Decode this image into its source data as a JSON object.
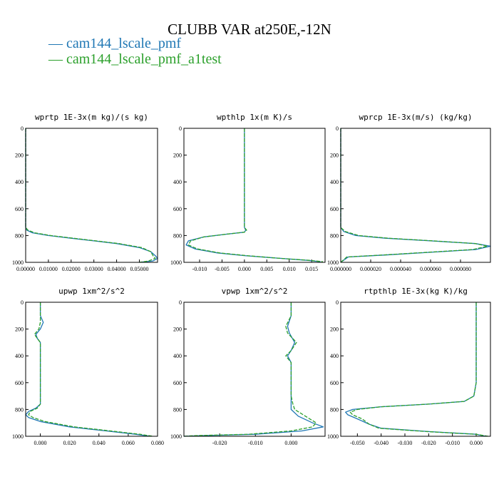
{
  "figure": {
    "title": "CLUBB VAR at250E,-12N",
    "legend": [
      {
        "label": "— cam144_lscale_pmf",
        "color": "#1f77b4"
      },
      {
        "label": "— cam144_lscale_pmf_a1test",
        "color": "#2ca02c"
      }
    ]
  },
  "chart_data": [
    {
      "type": "line",
      "title": "wprtp  1E-3x(m kg)/(s kg)",
      "xlim": [
        0.0,
        0.058
      ],
      "ylim": [
        1000,
        0
      ],
      "xticks": [
        0.0,
        0.01,
        0.02,
        0.03,
        0.04,
        0.05
      ],
      "xtick_labels": [
        "0.00000",
        "0.01000",
        "0.02000",
        "0.03000",
        "0.04000",
        "0.05000"
      ],
      "yticks": [
        0,
        200,
        400,
        600,
        800,
        1000
      ],
      "series": [
        {
          "name": "cam144_lscale_pmf",
          "color": "#1f77b4",
          "x": [
            0.0,
            0.0,
            0.0,
            0.0,
            0.0,
            0.0,
            0.0005,
            0.003,
            0.01,
            0.02,
            0.03,
            0.04,
            0.05,
            0.055,
            0.057,
            0.058,
            0.056,
            0.05
          ],
          "y": [
            0,
            200,
            400,
            600,
            700,
            740,
            760,
            780,
            800,
            820,
            840,
            860,
            890,
            920,
            950,
            970,
            990,
            1000
          ]
        },
        {
          "name": "cam144_lscale_pmf_a1test",
          "color": "#2ca02c",
          "x": [
            0.0,
            0.0,
            0.0,
            0.0,
            0.0,
            0.0,
            0.001,
            0.004,
            0.011,
            0.021,
            0.031,
            0.041,
            0.051,
            0.055,
            0.056,
            0.057,
            0.054,
            0.05
          ],
          "y": [
            0,
            200,
            400,
            600,
            700,
            740,
            760,
            780,
            800,
            820,
            840,
            860,
            890,
            920,
            950,
            970,
            990,
            1000
          ]
        }
      ]
    },
    {
      "type": "line",
      "title": "wpthlp  1x(m K)/s",
      "xlim": [
        -0.0135,
        0.018
      ],
      "ylim": [
        1000,
        0
      ],
      "xticks": [
        -0.01,
        -0.005,
        0.0,
        0.005,
        0.01,
        0.015
      ],
      "xtick_labels": [
        "-0.010",
        "-0.005",
        "0.000",
        "0.005",
        "0.010",
        "0.015"
      ],
      "yticks": [
        0,
        200,
        400,
        600,
        800,
        1000
      ],
      "series": [
        {
          "name": "cam144_lscale_pmf",
          "color": "#1f77b4",
          "x": [
            0.0,
            0.0,
            0.0,
            0.0,
            0.0,
            0.0,
            0.0003,
            0.0,
            -0.004,
            -0.009,
            -0.0125,
            -0.013,
            -0.011,
            -0.006,
            0.0,
            0.008,
            0.014,
            0.017
          ],
          "y": [
            0,
            200,
            400,
            600,
            700,
            740,
            760,
            775,
            790,
            810,
            840,
            870,
            900,
            930,
            950,
            970,
            985,
            995
          ]
        },
        {
          "name": "cam144_lscale_pmf_a1test",
          "color": "#2ca02c",
          "x": [
            0.0,
            0.0,
            0.0,
            0.0,
            0.0,
            0.0,
            0.0005,
            0.0,
            -0.004,
            -0.009,
            -0.012,
            -0.0125,
            -0.0105,
            -0.0055,
            0.0005,
            0.008,
            0.0145,
            0.0175
          ],
          "y": [
            0,
            200,
            400,
            600,
            700,
            740,
            760,
            775,
            790,
            810,
            840,
            870,
            900,
            930,
            950,
            970,
            985,
            995
          ]
        }
      ]
    },
    {
      "type": "line",
      "title": "wprcp  1E-3x(m/s) (kg/kg)",
      "xlim": [
        0.0,
        0.0001
      ],
      "ylim": [
        1000,
        0
      ],
      "xticks": [
        0.0,
        2e-05,
        4e-05,
        6e-05,
        8e-05
      ],
      "xtick_labels": [
        "0.000000",
        "0.000020",
        "0.000040",
        "0.000060",
        "0.000080"
      ],
      "yticks": [
        0,
        200,
        400,
        600,
        800,
        1000
      ],
      "series": [
        {
          "name": "cam144_lscale_pmf",
          "color": "#1f77b4",
          "x": [
            0.0,
            0.0,
            0.0,
            0.0,
            0.0,
            0.0,
            2e-06,
            1e-05,
            3e-05,
            6e-05,
            9e-05,
            0.0001,
            9e-05,
            6e-05,
            3e-05,
            5e-06,
            0.0
          ],
          "y": [
            0,
            200,
            400,
            600,
            700,
            740,
            770,
            800,
            820,
            840,
            860,
            880,
            905,
            925,
            945,
            960,
            1000
          ]
        },
        {
          "name": "cam144_lscale_pmf_a1test",
          "color": "#2ca02c",
          "x": [
            0.0,
            0.0,
            0.0,
            0.0,
            0.0,
            0.0,
            3e-06,
            1.2e-05,
            3.2e-05,
            6.2e-05,
            9e-05,
            9.8e-05,
            8.8e-05,
            5.8e-05,
            2.8e-05,
            4e-06,
            0.0
          ],
          "y": [
            0,
            200,
            400,
            600,
            700,
            740,
            770,
            800,
            820,
            840,
            860,
            880,
            905,
            925,
            945,
            960,
            1000
          ]
        }
      ]
    },
    {
      "type": "line",
      "title": "upwp  1xm^2/s^2",
      "xlim": [
        -0.01,
        0.08
      ],
      "ylim": [
        1000,
        0
      ],
      "xticks": [
        0.0,
        0.02,
        0.04,
        0.06,
        0.08
      ],
      "xtick_labels": [
        "0.000",
        "0.020",
        "0.040",
        "0.060",
        "0.080"
      ],
      "yticks": [
        0,
        200,
        400,
        600,
        800,
        1000
      ],
      "series": [
        {
          "name": "cam144_lscale_pmf",
          "color": "#1f77b4",
          "x": [
            0.0,
            0.0,
            0.002,
            0.0,
            -0.003,
            -0.002,
            0.0,
            0.0,
            0.0,
            0.0,
            0.0,
            -0.003,
            -0.008,
            -0.01,
            -0.008,
            0.0,
            0.02,
            0.045,
            0.065,
            0.075
          ],
          "y": [
            0,
            100,
            150,
            200,
            240,
            270,
            300,
            400,
            600,
            700,
            760,
            790,
            815,
            840,
            860,
            890,
            930,
            960,
            985,
            1000
          ]
        },
        {
          "name": "cam144_lscale_pmf_a1test",
          "color": "#2ca02c",
          "x": [
            0.0,
            0.0,
            0.0,
            -0.001,
            -0.004,
            -0.002,
            0.0,
            0.0,
            0.0,
            0.0,
            0.0,
            -0.002,
            -0.007,
            -0.008,
            -0.005,
            0.003,
            0.023,
            0.048,
            0.068,
            0.077
          ],
          "y": [
            0,
            100,
            150,
            200,
            240,
            270,
            300,
            400,
            600,
            700,
            760,
            790,
            815,
            840,
            860,
            890,
            930,
            960,
            985,
            1000
          ]
        }
      ]
    },
    {
      "type": "line",
      "title": "vpwp  1xm^2/s^2",
      "xlim": [
        -0.03,
        0.0095
      ],
      "ylim": [
        1000,
        0
      ],
      "xticks": [
        -0.02,
        -0.01,
        0.0
      ],
      "xtick_labels": [
        "-0.020",
        "-0.010",
        "0.000"
      ],
      "yticks": [
        0,
        200,
        400,
        600,
        800,
        1000
      ],
      "series": [
        {
          "name": "cam144_lscale_pmf",
          "color": "#1f77b4",
          "x": [
            0.0,
            0.0,
            -0.001,
            -0.0005,
            0.001,
            0.0,
            -0.001,
            0.0,
            0.0,
            0.0,
            0.0,
            0.0,
            0.002,
            0.006,
            0.009,
            0.003,
            -0.01,
            -0.025,
            -0.03
          ],
          "y": [
            0,
            100,
            180,
            230,
            300,
            360,
            400,
            450,
            600,
            700,
            760,
            800,
            850,
            900,
            930,
            960,
            985,
            995,
            1000
          ]
        },
        {
          "name": "cam144_lscale_pmf_a1test",
          "color": "#2ca02c",
          "x": [
            0.0,
            0.0,
            -0.0015,
            -0.001,
            0.0015,
            0.0,
            -0.0015,
            0.0,
            0.0,
            0.0,
            0.0005,
            0.001,
            0.004,
            0.007,
            0.006,
            0.0,
            -0.012,
            -0.027,
            -0.03
          ],
          "y": [
            0,
            100,
            180,
            230,
            300,
            360,
            400,
            450,
            600,
            700,
            760,
            800,
            850,
            900,
            930,
            960,
            985,
            995,
            1000
          ]
        }
      ]
    },
    {
      "type": "line",
      "title": "rtpthlp  1E-3x(kg K)/kg",
      "xlim": [
        -0.057,
        0.006
      ],
      "ylim": [
        1000,
        0
      ],
      "xticks": [
        -0.05,
        -0.04,
        -0.03,
        -0.02,
        -0.01,
        0.0
      ],
      "xtick_labels": [
        "-0.050",
        "-0.040",
        "-0.030",
        "-0.020",
        "-0.010",
        "0.000"
      ],
      "yticks": [
        0,
        200,
        400,
        600,
        800,
        1000
      ],
      "series": [
        {
          "name": "cam144_lscale_pmf",
          "color": "#1f77b4",
          "x": [
            0.0,
            0.0,
            0.0,
            0.0,
            -0.001,
            -0.005,
            -0.02,
            -0.04,
            -0.052,
            -0.055,
            -0.054,
            -0.05,
            -0.045,
            -0.04,
            -0.02,
            0.0,
            0.004
          ],
          "y": [
            0,
            200,
            400,
            600,
            700,
            740,
            760,
            780,
            800,
            820,
            840,
            870,
            910,
            940,
            965,
            985,
            1000
          ]
        },
        {
          "name": "cam144_lscale_pmf_a1test",
          "color": "#2ca02c",
          "x": [
            0.0,
            0.0,
            0.0,
            0.0,
            -0.001,
            -0.005,
            -0.02,
            -0.04,
            -0.05,
            -0.053,
            -0.052,
            -0.048,
            -0.045,
            -0.041,
            -0.021,
            0.0,
            0.005
          ],
          "y": [
            0,
            200,
            400,
            600,
            700,
            740,
            760,
            780,
            800,
            820,
            840,
            870,
            910,
            940,
            965,
            985,
            1000
          ]
        }
      ]
    }
  ]
}
